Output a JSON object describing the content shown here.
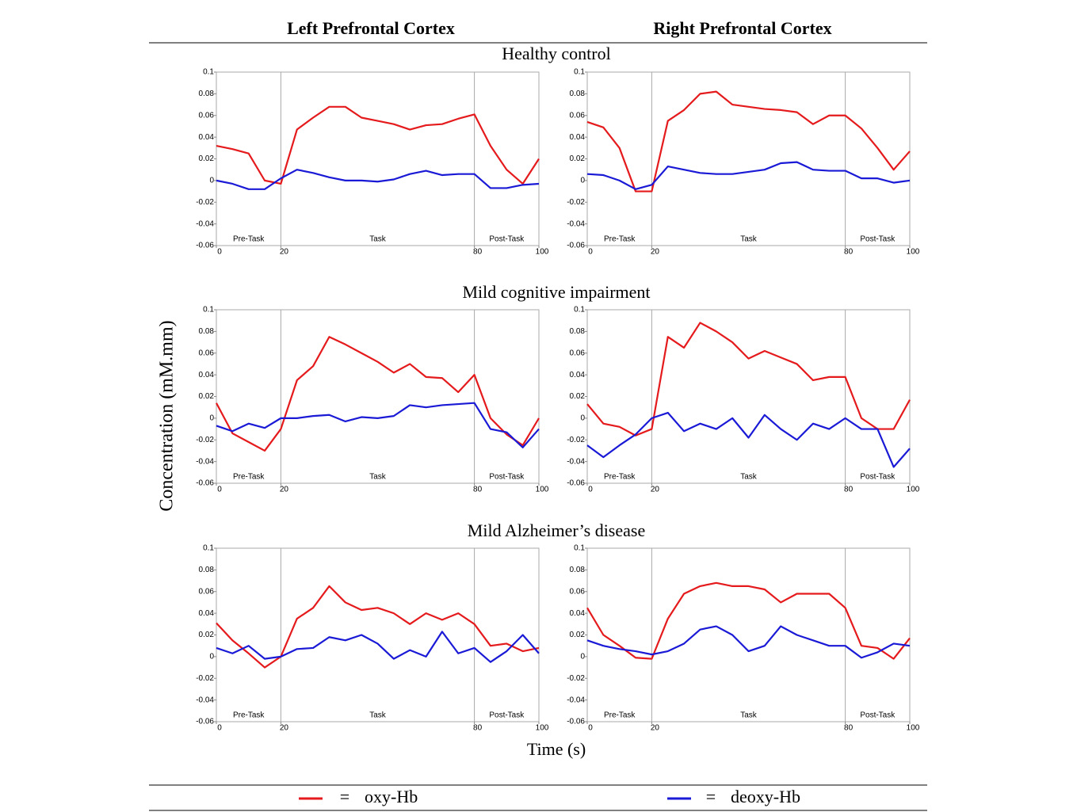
{
  "columns": [
    "Left Prefrontal Cortex",
    "Right Prefrontal Cortex"
  ],
  "rows": [
    "Healthy control",
    "Mild cognitive impairment",
    "Mild Alzheimer’s disease"
  ],
  "ylabel": "Concentration (mM.mm)",
  "xlabel": "Time (s)",
  "legend_separator": "=",
  "chart_data": [
    {
      "type": "line",
      "xlim": [
        0,
        100
      ],
      "ylim": [
        -0.06,
        0.1
      ],
      "xticks": [
        0,
        20,
        80,
        100
      ],
      "yticks": [
        -0.06,
        -0.04,
        -0.02,
        0,
        0.02,
        0.04,
        0.06,
        0.08,
        0.1
      ],
      "phases": [
        {
          "label": "Pre-Task",
          "start": 0,
          "end": 20
        },
        {
          "label": "Task",
          "start": 20,
          "end": 80
        },
        {
          "label": "Post-Task",
          "start": 80,
          "end": 100
        }
      ],
      "x": [
        0,
        5,
        10,
        15,
        20,
        25,
        30,
        35,
        40,
        45,
        50,
        55,
        60,
        65,
        70,
        75,
        80,
        85,
        90,
        95,
        100
      ],
      "series": [
        {
          "name": "oxy-Hb",
          "color": "#e41a1c",
          "values": [
            0.032,
            0.029,
            0.025,
            0.0,
            -0.003,
            0.047,
            0.058,
            0.068,
            0.068,
            0.058,
            0.055,
            0.052,
            0.047,
            0.051,
            0.052,
            0.057,
            0.061,
            0.032,
            0.01,
            -0.003,
            0.02
          ]
        },
        {
          "name": "deoxy-Hb",
          "color": "#1a1ad6",
          "values": [
            0.0,
            -0.003,
            -0.008,
            -0.008,
            0.002,
            0.01,
            0.007,
            0.003,
            0.0,
            0.0,
            -0.001,
            0.001,
            0.006,
            0.009,
            0.005,
            0.006,
            0.006,
            -0.007,
            -0.007,
            -0.004,
            -0.003
          ]
        }
      ]
    },
    {
      "type": "line",
      "xlim": [
        0,
        100
      ],
      "ylim": [
        -0.06,
        0.1
      ],
      "xticks": [
        0,
        20,
        80,
        100
      ],
      "yticks": [
        -0.06,
        -0.04,
        -0.02,
        0,
        0.02,
        0.04,
        0.06,
        0.08,
        0.1
      ],
      "phases": [
        {
          "label": "Pre-Task",
          "start": 0,
          "end": 20
        },
        {
          "label": "Task",
          "start": 20,
          "end": 80
        },
        {
          "label": "Post-Task",
          "start": 80,
          "end": 100
        }
      ],
      "x": [
        0,
        5,
        10,
        15,
        20,
        25,
        30,
        35,
        40,
        45,
        50,
        55,
        60,
        65,
        70,
        75,
        80,
        85,
        90,
        95,
        100
      ],
      "series": [
        {
          "name": "oxy-Hb",
          "color": "#e41a1c",
          "values": [
            0.054,
            0.049,
            0.03,
            -0.01,
            -0.01,
            0.055,
            0.065,
            0.08,
            0.082,
            0.07,
            0.068,
            0.066,
            0.065,
            0.063,
            0.052,
            0.06,
            0.06,
            0.048,
            0.03,
            0.01,
            0.027
          ]
        },
        {
          "name": "deoxy-Hb",
          "color": "#1a1ad6",
          "values": [
            0.006,
            0.005,
            0.0,
            -0.008,
            -0.004,
            0.013,
            0.01,
            0.007,
            0.006,
            0.006,
            0.008,
            0.01,
            0.016,
            0.017,
            0.01,
            0.009,
            0.009,
            0.002,
            0.002,
            -0.002,
            0.0
          ]
        }
      ]
    },
    {
      "type": "line",
      "xlim": [
        0,
        100
      ],
      "ylim": [
        -0.06,
        0.1
      ],
      "xticks": [
        0,
        20,
        80,
        100
      ],
      "yticks": [
        -0.06,
        -0.04,
        -0.02,
        0,
        0.02,
        0.04,
        0.06,
        0.08,
        0.1
      ],
      "phases": [
        {
          "label": "Pre-Task",
          "start": 0,
          "end": 20
        },
        {
          "label": "Task",
          "start": 20,
          "end": 80
        },
        {
          "label": "Post-Task",
          "start": 80,
          "end": 100
        }
      ],
      "x": [
        0,
        5,
        10,
        15,
        20,
        25,
        30,
        35,
        40,
        45,
        50,
        55,
        60,
        65,
        70,
        75,
        80,
        85,
        90,
        95,
        100
      ],
      "series": [
        {
          "name": "oxy-Hb",
          "color": "#e41a1c",
          "values": [
            0.014,
            -0.014,
            -0.022,
            -0.03,
            -0.01,
            0.035,
            0.048,
            0.075,
            0.068,
            0.06,
            0.052,
            0.042,
            0.05,
            0.038,
            0.037,
            0.024,
            0.04,
            0.0,
            -0.015,
            -0.025,
            0.0
          ]
        },
        {
          "name": "deoxy-Hb",
          "color": "#1a1ad6",
          "values": [
            -0.007,
            -0.012,
            -0.005,
            -0.009,
            0.0,
            0.0,
            0.002,
            0.003,
            -0.003,
            0.001,
            0.0,
            0.002,
            0.012,
            0.01,
            0.012,
            0.013,
            0.014,
            -0.01,
            -0.013,
            -0.027,
            -0.01
          ]
        }
      ]
    },
    {
      "type": "line",
      "xlim": [
        0,
        100
      ],
      "ylim": [
        -0.06,
        0.1
      ],
      "xticks": [
        0,
        20,
        80,
        100
      ],
      "yticks": [
        -0.06,
        -0.04,
        -0.02,
        0,
        0.02,
        0.04,
        0.06,
        0.08,
        0.1
      ],
      "phases": [
        {
          "label": "Pre-Task",
          "start": 0,
          "end": 20
        },
        {
          "label": "Task",
          "start": 20,
          "end": 80
        },
        {
          "label": "Post-Task",
          "start": 80,
          "end": 100
        }
      ],
      "x": [
        0,
        5,
        10,
        15,
        20,
        25,
        30,
        35,
        40,
        45,
        50,
        55,
        60,
        65,
        70,
        75,
        80,
        85,
        90,
        95,
        100
      ],
      "series": [
        {
          "name": "oxy-Hb",
          "color": "#e41a1c",
          "values": [
            0.013,
            -0.005,
            -0.008,
            -0.016,
            -0.01,
            0.075,
            0.065,
            0.088,
            0.08,
            0.07,
            0.055,
            0.062,
            0.056,
            0.05,
            0.035,
            0.038,
            0.038,
            0.0,
            -0.01,
            -0.01,
            0.017
          ]
        },
        {
          "name": "deoxy-Hb",
          "color": "#1a1ad6",
          "values": [
            -0.025,
            -0.036,
            -0.025,
            -0.015,
            0.0,
            0.005,
            -0.012,
            -0.005,
            -0.01,
            0.0,
            -0.018,
            0.003,
            -0.01,
            -0.02,
            -0.005,
            -0.01,
            0.0,
            -0.01,
            -0.01,
            -0.045,
            -0.028
          ]
        }
      ]
    },
    {
      "type": "line",
      "xlim": [
        0,
        100
      ],
      "ylim": [
        -0.06,
        0.1
      ],
      "xticks": [
        0,
        20,
        80,
        100
      ],
      "yticks": [
        -0.06,
        -0.04,
        -0.02,
        0,
        0.02,
        0.04,
        0.06,
        0.08,
        0.1
      ],
      "phases": [
        {
          "label": "Pre-Task",
          "start": 0,
          "end": 20
        },
        {
          "label": "Task",
          "start": 20,
          "end": 80
        },
        {
          "label": "Post-Task",
          "start": 80,
          "end": 100
        }
      ],
      "x": [
        0,
        5,
        10,
        15,
        20,
        25,
        30,
        35,
        40,
        45,
        50,
        55,
        60,
        65,
        70,
        75,
        80,
        85,
        90,
        95,
        100
      ],
      "series": [
        {
          "name": "oxy-Hb",
          "color": "#e41a1c",
          "values": [
            0.031,
            0.015,
            0.003,
            -0.01,
            0.0,
            0.035,
            0.045,
            0.065,
            0.05,
            0.043,
            0.045,
            0.04,
            0.03,
            0.04,
            0.034,
            0.04,
            0.03,
            0.01,
            0.012,
            0.005,
            0.008
          ]
        },
        {
          "name": "deoxy-Hb",
          "color": "#1a1ad6",
          "values": [
            0.008,
            0.003,
            0.01,
            -0.002,
            0.0,
            0.007,
            0.008,
            0.018,
            0.015,
            0.02,
            0.012,
            -0.002,
            0.006,
            0.0,
            0.023,
            0.003,
            0.008,
            -0.005,
            0.005,
            0.02,
            0.003
          ]
        }
      ]
    },
    {
      "type": "line",
      "xlim": [
        0,
        100
      ],
      "ylim": [
        -0.06,
        0.1
      ],
      "xticks": [
        0,
        20,
        80,
        100
      ],
      "yticks": [
        -0.06,
        -0.04,
        -0.02,
        0,
        0.02,
        0.04,
        0.06,
        0.08,
        0.1
      ],
      "phases": [
        {
          "label": "Pre-Task",
          "start": 0,
          "end": 20
        },
        {
          "label": "Task",
          "start": 20,
          "end": 80
        },
        {
          "label": "Post-Task",
          "start": 80,
          "end": 100
        }
      ],
      "x": [
        0,
        5,
        10,
        15,
        20,
        25,
        30,
        35,
        40,
        45,
        50,
        55,
        60,
        65,
        70,
        75,
        80,
        85,
        90,
        95,
        100
      ],
      "series": [
        {
          "name": "oxy-Hb",
          "color": "#e41a1c",
          "values": [
            0.045,
            0.02,
            0.01,
            -0.001,
            -0.002,
            0.035,
            0.058,
            0.065,
            0.068,
            0.065,
            0.065,
            0.062,
            0.05,
            0.058,
            0.058,
            0.058,
            0.045,
            0.01,
            0.008,
            -0.002,
            0.017
          ]
        },
        {
          "name": "deoxy-Hb",
          "color": "#1a1ad6",
          "values": [
            0.015,
            0.01,
            0.007,
            0.005,
            0.002,
            0.005,
            0.012,
            0.025,
            0.028,
            0.02,
            0.005,
            0.01,
            0.028,
            0.02,
            0.015,
            0.01,
            0.01,
            -0.001,
            0.004,
            0.012,
            0.01
          ]
        }
      ]
    }
  ]
}
